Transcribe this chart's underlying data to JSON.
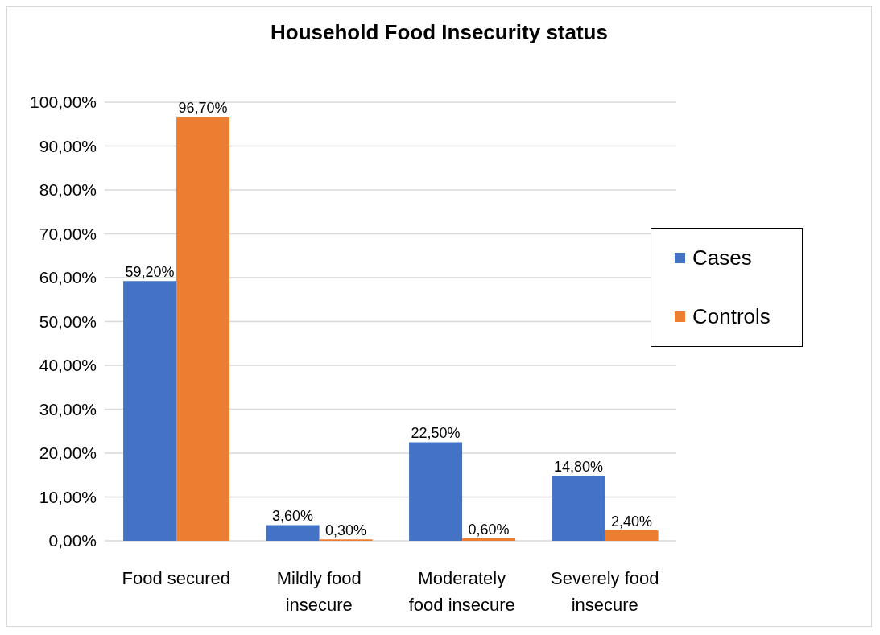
{
  "chart_data": {
    "type": "bar",
    "title": "Household Food Insecurity status",
    "categories": [
      "Food secured",
      "Mildly food insecure",
      "Moderately food insecure",
      "Severely food insecure"
    ],
    "series": [
      {
        "name": "Cases",
        "color": "#4472c4",
        "values": [
          59.2,
          3.6,
          22.5,
          14.8
        ],
        "value_labels": [
          "59,20%",
          "3,60%",
          "22,50%",
          "14,80%"
        ]
      },
      {
        "name": "Controls",
        "color": "#ed7d31",
        "values": [
          96.7,
          0.3,
          0.6,
          2.4
        ],
        "value_labels": [
          "96,70%",
          "0,30%",
          "0,60%",
          "2,40%"
        ]
      }
    ],
    "ylim": [
      0,
      100
    ],
    "yticks": [
      {
        "value": 0,
        "label": "0,00%"
      },
      {
        "value": 10,
        "label": "10,00%"
      },
      {
        "value": 20,
        "label": "20,00%"
      },
      {
        "value": 30,
        "label": "30,00%"
      },
      {
        "value": 40,
        "label": "40,00%"
      },
      {
        "value": 50,
        "label": "50,00%"
      },
      {
        "value": 60,
        "label": "60,00%"
      },
      {
        "value": 70,
        "label": "70,00%"
      },
      {
        "value": 80,
        "label": "80,00%"
      },
      {
        "value": 90,
        "label": "90,00%"
      },
      {
        "value": 100,
        "label": "100,00%"
      }
    ],
    "grid": "y",
    "legend": "right"
  }
}
